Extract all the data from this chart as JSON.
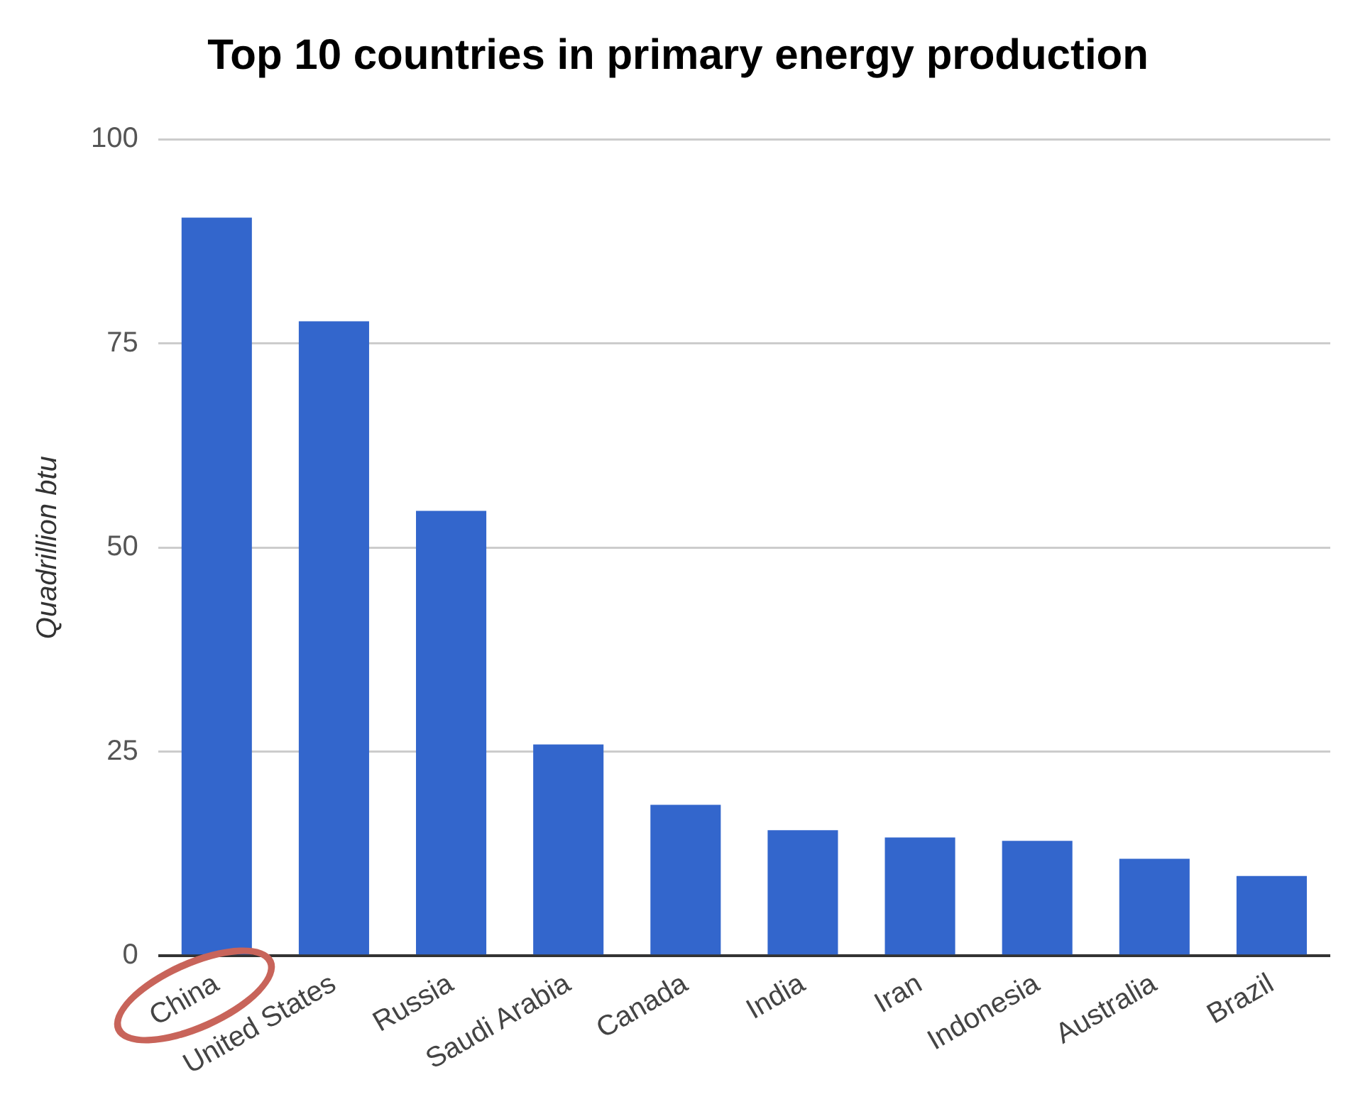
{
  "chart_data": {
    "type": "bar",
    "title": "Top 10 countries in primary energy production",
    "ylabel": "Quadrillion btu",
    "categories": [
      "China",
      "United States",
      "Russia",
      "Saudi Arabia",
      "Canada",
      "India",
      "Iran",
      "Indonesia",
      "Australia",
      "Brazil"
    ],
    "values": [
      90.4,
      77.7,
      54.5,
      25.9,
      18.5,
      15.4,
      14.5,
      14.1,
      11.9,
      9.8
    ],
    "color": "#3366cc",
    "ylim": [
      0,
      100
    ],
    "yticks": [
      0,
      25,
      50,
      75,
      100
    ],
    "grid": "y"
  }
}
